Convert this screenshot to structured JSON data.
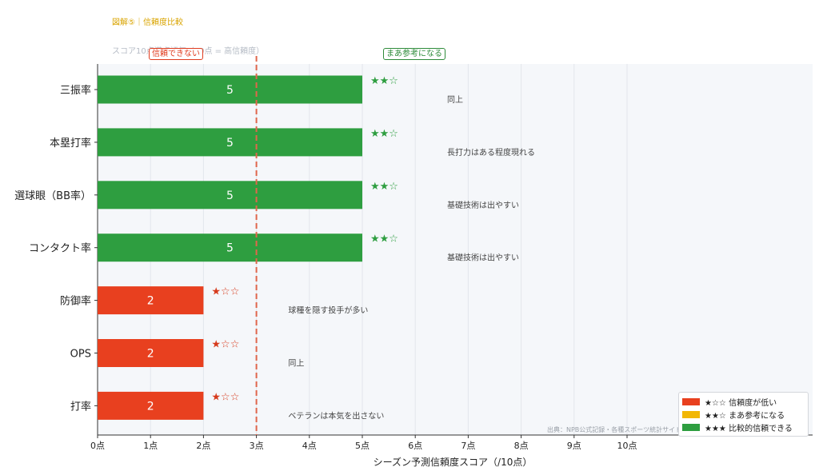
{
  "header": {
    "kicker": "図解⑤｜信頼度比較",
    "subtitle": "スコア10点満点評価（10点 = 高信頼度）"
  },
  "callouts": {
    "low": "信頼できない",
    "mid": "まあ参考になる"
  },
  "source": "出典：NPB公式記録・各種スポーツ統計サイト",
  "legend": [
    {
      "label": "★☆☆ 信頼度が低い",
      "color": "#e8401f"
    },
    {
      "label": "★★☆ まあ参考になる",
      "color": "#f2b705"
    },
    {
      "label": "★★★ 比較的信頼できる",
      "color": "#2e9e40"
    }
  ],
  "colors": {
    "low": "#e8401f",
    "mid": "#2e9e40",
    "threshold": "#e0664c",
    "grid": "#e3e6ec",
    "plot_bg": "#f5f7fa"
  },
  "chart_data": {
    "type": "bar",
    "orientation": "horizontal",
    "xlabel": "シーズン予測信頼度スコア（/10点）",
    "ylabel": "",
    "xlim": [
      0,
      13.5
    ],
    "xticks": [
      0,
      1,
      2,
      3,
      4,
      5,
      6,
      7,
      8,
      9,
      10
    ],
    "xtick_labels": [
      "0点",
      "1点",
      "2点",
      "3点",
      "4点",
      "5点",
      "6点",
      "7点",
      "8点",
      "9点",
      "10点"
    ],
    "grid": true,
    "threshold": 3,
    "categories": [
      "三振率",
      "本塁打率",
      "選球眼（BB率）",
      "コンタクト率",
      "防御率",
      "OPS",
      "打率"
    ],
    "values": [
      5,
      5,
      5,
      5,
      2,
      2,
      2
    ],
    "ratings": [
      "★★☆",
      "★★☆",
      "★★☆",
      "★★☆",
      "★☆☆",
      "★☆☆",
      "★☆☆"
    ],
    "notes": [
      "同上",
      "長打力はある程度現れる",
      "基礎技術は出やすい",
      "基礎技術は出やすい",
      "球種を隠す投手が多い",
      "同上",
      "ベテランは本気を出さない"
    ],
    "legend_position": "bottom-right"
  }
}
